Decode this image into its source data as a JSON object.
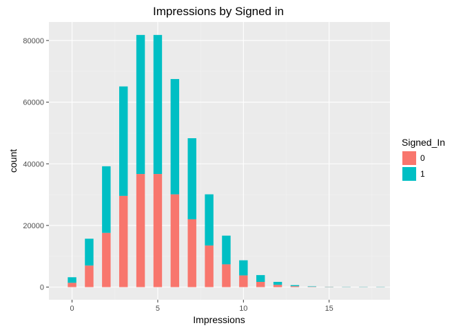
{
  "chart_data": {
    "type": "bar",
    "title": "Impressions by Signed in",
    "xlabel": "Impressions",
    "ylabel": "count",
    "x": [
      0,
      1,
      2,
      3,
      4,
      5,
      6,
      7,
      8,
      9,
      10,
      11,
      12,
      13,
      14,
      15,
      16,
      17,
      18
    ],
    "stacked": true,
    "series": [
      {
        "name": "0",
        "color": "#F8766D",
        "values": [
          1400,
          7000,
          17600,
          29600,
          36700,
          36700,
          30100,
          22000,
          13500,
          7400,
          3800,
          1700,
          750,
          300,
          100,
          40,
          10,
          5,
          2
        ]
      },
      {
        "name": "1",
        "color": "#00BFC4",
        "values": [
          1800,
          8700,
          21600,
          35500,
          45100,
          45100,
          37400,
          26300,
          16600,
          9300,
          4900,
          2200,
          950,
          350,
          150,
          50,
          15,
          5,
          2
        ]
      }
    ],
    "xlim": [
      -1.35,
      18.55
    ],
    "ylim": [
      -4100,
      86000
    ],
    "xticks": [
      0,
      5,
      10,
      15
    ],
    "xtick_labels": [
      "0",
      "5",
      "10",
      "15"
    ],
    "yticks": [
      0,
      20000,
      40000,
      60000,
      80000
    ],
    "ytick_labels": [
      "0",
      "20000",
      "40000",
      "60000",
      "80000"
    ],
    "grid": true,
    "background": "#EBEBEB",
    "legend": {
      "title": "Signed_In",
      "position": "right",
      "entries": [
        "0",
        "1"
      ]
    }
  }
}
